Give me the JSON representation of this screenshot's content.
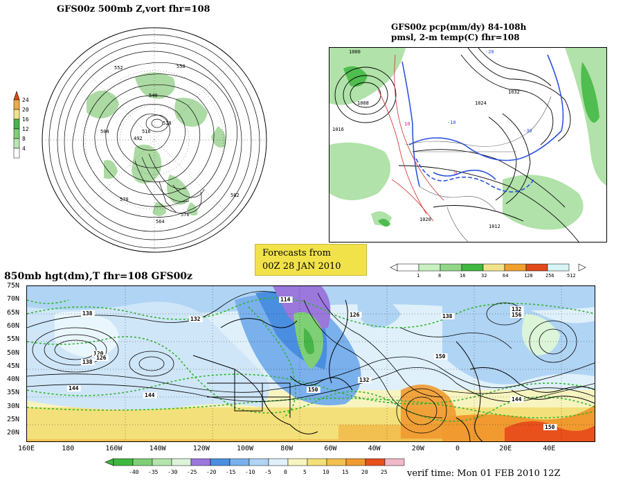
{
  "polar_panel": {
    "title": "GFS00z   500mb Z,vort    fhr=108",
    "colorbar": {
      "ticks": [
        "24",
        "20",
        "16",
        "12",
        "8",
        "4"
      ],
      "colors": [
        "#ffffff",
        "#b8e6b0",
        "#7fcf76",
        "#48b548",
        "#f2e28a",
        "#f0a848",
        "#e04a1a"
      ]
    },
    "contour_labels": [
      "552",
      "540",
      "528",
      "516",
      "504",
      "492",
      "576",
      "564",
      "582",
      "570",
      "558"
    ]
  },
  "na_panel": {
    "title_line1": "GFS00z pcp(mm/dy) 84-108h",
    "title_line2": "pmsl, 2-m temp(C)  fhr=108",
    "colorbar": {
      "ticks": [
        "1",
        "8",
        "16",
        "32",
        "64",
        "128",
        "256",
        "512"
      ],
      "colors": [
        "#ffffff",
        "#c8f0c0",
        "#90d888",
        "#40b840",
        "#f2e28a",
        "#f0a030",
        "#e04a1a",
        "#d8f4f4"
      ]
    },
    "pressure_labels": [
      "1000",
      "1008",
      "1016",
      "1024",
      "1032",
      "1012",
      "1020"
    ],
    "temp_labels": [
      "-20",
      "-10",
      "10",
      "0",
      "-30"
    ]
  },
  "forecast_badge": {
    "line1": "Forecasts from",
    "line2": "00Z 28 JAN 2010"
  },
  "main_panel": {
    "title": "850mb hgt(dm),T   fhr=108 GFS00z",
    "lat_labels": [
      "75N",
      "70N",
      "65N",
      "60N",
      "55N",
      "50N",
      "45N",
      "40N",
      "35N",
      "30N",
      "25N",
      "20N"
    ],
    "lon_labels": [
      "160E",
      "180",
      "160W",
      "140W",
      "120W",
      "100W",
      "80W",
      "60W",
      "40W",
      "20W",
      "0",
      "20E",
      "40E"
    ],
    "height_labels": [
      "114",
      "138",
      "132",
      "126",
      "120",
      "138",
      "144",
      "150",
      "138",
      "126",
      "132",
      "144",
      "150",
      "156",
      "144",
      "132",
      "150"
    ],
    "colorbar": {
      "ticks": [
        "-40",
        "-35",
        "-30",
        "-25",
        "-20",
        "-15",
        "-10",
        "-5",
        "0",
        "5",
        "10",
        "15",
        "20",
        "25"
      ],
      "colors": [
        "#3fb83f",
        "#7fcf76",
        "#b4e6ac",
        "#dcf4d8",
        "#9a78dc",
        "#4a8ee0",
        "#7ab0ec",
        "#b0d4f4",
        "#dff0fb",
        "#f8f4c0",
        "#f4e07a",
        "#f2c050",
        "#f09a30",
        "#e8501c",
        "#f0b8c8"
      ]
    },
    "verif_time": "verif time: Mon 01 FEB 2010 12Z"
  }
}
